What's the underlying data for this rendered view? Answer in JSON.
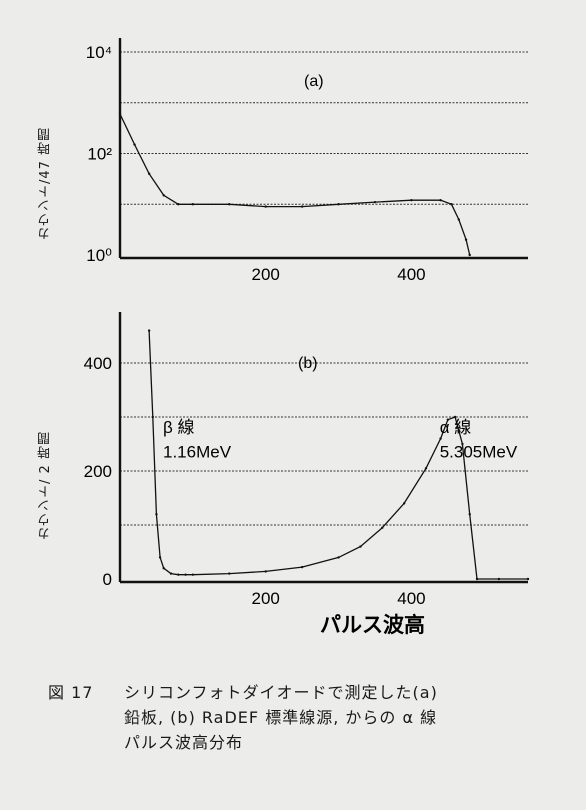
{
  "chart_data": [
    {
      "type": "line",
      "label": "(a)",
      "ylabel": "カウント/47 時間",
      "yscale": "log",
      "ylim": [
        1,
        10000
      ],
      "xlim": [
        0,
        560
      ],
      "yticks": [
        "10⁰",
        "10²",
        "10⁴"
      ],
      "xticks": [
        200,
        400
      ],
      "grid": true,
      "series": [
        {
          "x": [
            0,
            20,
            40,
            60,
            80,
            100,
            150,
            200,
            250,
            300,
            350,
            400,
            440,
            455,
            465,
            475,
            480
          ],
          "y": [
            600,
            150,
            40,
            15,
            10,
            10,
            10,
            9,
            9,
            10,
            11,
            12,
            12,
            10,
            5,
            2,
            1
          ]
        }
      ]
    },
    {
      "type": "line",
      "label": "(b)",
      "ylabel": "カウント/ 2 時間",
      "xlabel": "パルス波高",
      "ylim": [
        0,
        450
      ],
      "xlim": [
        0,
        560
      ],
      "yticks": [
        0,
        200,
        400
      ],
      "xticks": [
        200,
        400
      ],
      "grid": true,
      "annotations": [
        {
          "text": "β 線",
          "x": 70,
          "y": 270
        },
        {
          "text": "1.16MeV",
          "x": 70,
          "y": 225
        },
        {
          "text": "α 線",
          "x": 480,
          "y": 270
        },
        {
          "text": "5.305MeV",
          "x": 480,
          "y": 225
        }
      ],
      "series": [
        {
          "x": [
            40,
            45,
            50,
            55,
            60,
            70,
            80,
            90,
            100,
            150,
            200,
            250,
            300,
            330,
            360,
            390,
            420,
            440,
            450,
            460,
            470,
            480,
            490,
            520,
            560
          ],
          "y": [
            460,
            300,
            120,
            40,
            20,
            10,
            8,
            8,
            8,
            10,
            14,
            22,
            40,
            60,
            95,
            140,
            205,
            260,
            295,
            300,
            250,
            120,
            0,
            0,
            0
          ]
        }
      ]
    }
  ],
  "caption": {
    "number": "図 17",
    "line1": "シリコンフォトダイオードで測定した(a)",
    "line2": "鉛板, (b) RaDEF 標準線源, からの α 線",
    "line3": "パルス波高分布"
  }
}
